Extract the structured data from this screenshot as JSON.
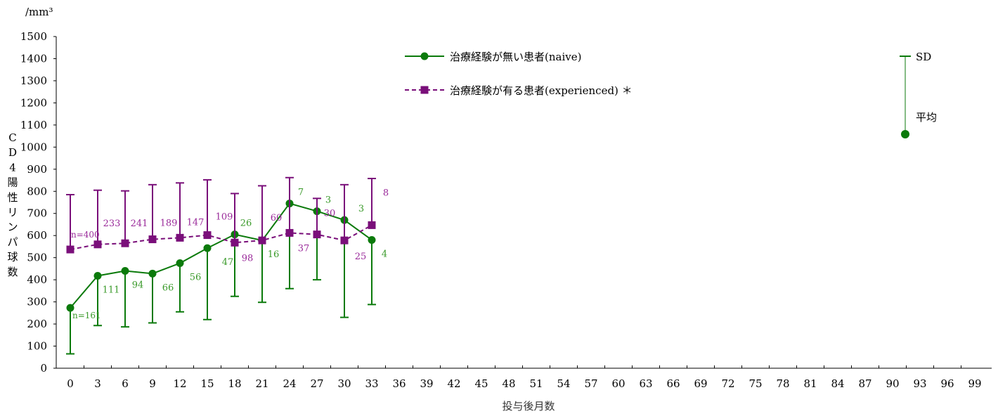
{
  "chart_data": {
    "type": "line",
    "unit_label": "/mm³",
    "ylabel": "CD4陽性リンパ球数",
    "xlabel": "投与後月数",
    "ylim": [
      0,
      1500
    ],
    "y_ticks": [
      0,
      100,
      200,
      300,
      400,
      500,
      600,
      700,
      800,
      900,
      1000,
      1100,
      1200,
      1300,
      1400,
      1500
    ],
    "x_ticks": [
      0,
      3,
      6,
      9,
      12,
      15,
      18,
      21,
      24,
      27,
      30,
      33,
      36,
      39,
      42,
      45,
      48,
      51,
      54,
      57,
      60,
      63,
      66,
      69,
      72,
      75,
      78,
      81,
      84,
      87,
      90,
      93,
      96,
      99
    ],
    "grid": false,
    "legend_position": "top",
    "series": [
      {
        "name": "治療経験が無い患者(naive)",
        "color": "#0b7a0b",
        "label_color": "#3a9a2a",
        "line_style": "solid",
        "marker": "circle",
        "error_direction": "down",
        "x": [
          0,
          3,
          6,
          9,
          12,
          15,
          18,
          21,
          24,
          27,
          30,
          33
        ],
        "y": [
          273,
          418,
          440,
          428,
          475,
          543,
          605,
          578,
          745,
          710,
          670,
          580
        ],
        "sd_bound": [
          65,
          193,
          187,
          205,
          255,
          220,
          325,
          298,
          360,
          400,
          230,
          288
        ],
        "n_labels": [
          "n=161",
          "111",
          "94",
          "66",
          "56",
          "47",
          "26",
          "16",
          "7",
          "3",
          "3",
          "4"
        ]
      },
      {
        "name": "治療経験が有る患者(experienced) ＊",
        "color": "#7a0f7a",
        "label_color": "#9a2a9a",
        "line_style": "dashed",
        "marker": "square",
        "error_direction": "up",
        "x": [
          0,
          3,
          6,
          9,
          12,
          15,
          18,
          21,
          24,
          27,
          30,
          33
        ],
        "y": [
          537,
          560,
          565,
          583,
          590,
          602,
          568,
          578,
          612,
          605,
          578,
          647
        ],
        "sd_bound": [
          785,
          805,
          802,
          830,
          838,
          852,
          790,
          825,
          862,
          768,
          830,
          858
        ],
        "n_labels": [
          "n=400",
          "233",
          "241",
          "189",
          "147",
          "109",
          "98",
          "60",
          "37",
          "30",
          "25",
          "8"
        ]
      }
    ],
    "key": {
      "sd_label": "SD",
      "mean_label": "平均"
    }
  }
}
